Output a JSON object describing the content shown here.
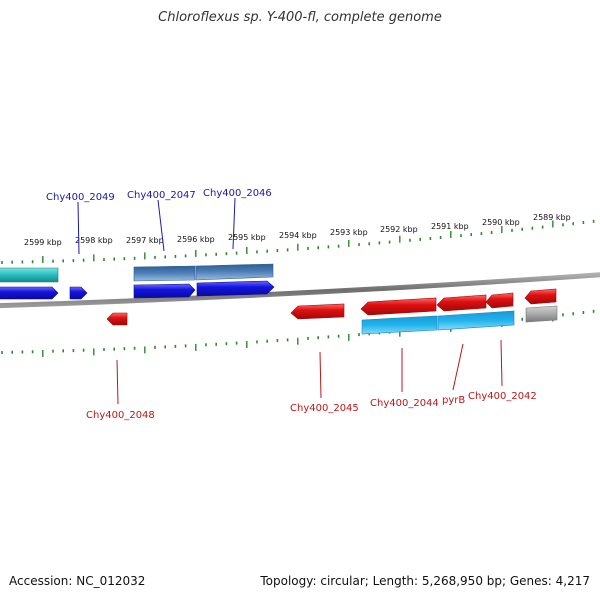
{
  "title": "Chloroflexus sp. Y-400-fl, complete genome",
  "footer": {
    "accession": "Accession: NC_012032",
    "summary": "Topology: circular; Length: 5,268,950 bp; Genes: 4,217"
  },
  "scale_labels": [
    "2599 kbp",
    "2598 kbp",
    "2597 kbp",
    "2596 kbp",
    "2595 kbp",
    "2594 kbp",
    "2593 kbp",
    "2592 kbp",
    "2591 kbp",
    "2590 kbp",
    "2589 kbp"
  ],
  "top_gene_labels": [
    "Chy400_2049",
    "Chy400_2047",
    "Chy400_2046"
  ],
  "bottom_gene_labels": [
    "Chy400_2048",
    "Chy400_2045",
    "Chy400_2044",
    "pyrB",
    "Chy400_2042"
  ],
  "colors": {
    "teal": "#2bbfc0",
    "steel": "#4a7db5",
    "blue": "#1414e0",
    "red": "#e01010",
    "cyan": "#20b4ec",
    "gray": "#a0a0a0",
    "tick": "#2a8a2a",
    "backbone": "#7a7a7a"
  }
}
